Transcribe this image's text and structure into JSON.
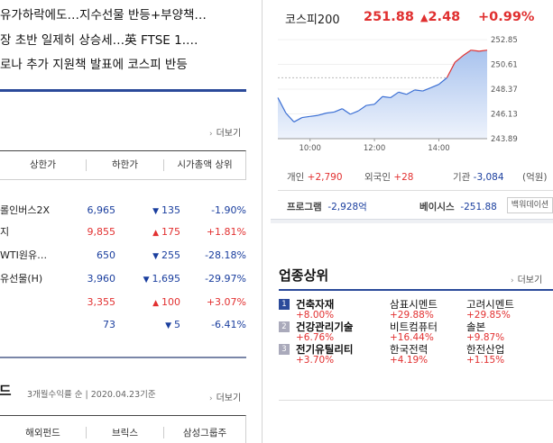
{
  "news": [
    "유가하락에도…지수선물 반등+부양책…",
    "장 초반 일제히 상승세…英 FTSE 1.…",
    "로나 추가 지원책 발표에 코스피 반등"
  ],
  "more_label": "더보기",
  "table": {
    "tabs": [
      "상한가",
      "하한가",
      "시가총액 상위"
    ],
    "rows": [
      {
        "name": "롤인버스2X",
        "price": "6,965",
        "change": "135",
        "dir": "down",
        "rate": "-1.90%"
      },
      {
        "name": "지",
        "price": "9,855",
        "change": "175",
        "dir": "up",
        "rate": "+1.81%"
      },
      {
        "name": " WTI원유…",
        "price": "650",
        "change": "255",
        "dir": "down",
        "rate": "-28.18%"
      },
      {
        "name": "유선물(H)",
        "price": "3,960",
        "change": "1,695",
        "dir": "down",
        "rate": "-29.97%"
      },
      {
        "name": "",
        "price": "3,355",
        "change": "100",
        "dir": "up",
        "rate": "+3.07%"
      },
      {
        "name": "",
        "price": "73",
        "change": "5",
        "dir": "down",
        "rate": "-6.41%"
      }
    ]
  },
  "fund": {
    "title": "펀드",
    "subtitle": "3개월수익률 순 | 2020.04.23기준",
    "tabs": [
      "해외펀드",
      "브릭스",
      "삼성그룹주"
    ]
  },
  "kospi": {
    "name": "코스피200",
    "value": "251.88",
    "change": "2.48",
    "rate": "+0.99%"
  },
  "chart_data": {
    "type": "area",
    "x_ticks": [
      "10:00",
      "12:00",
      "14:00"
    ],
    "y_ticks": [
      "252.85",
      "250.61",
      "248.37",
      "246.13",
      "243.89"
    ],
    "ylim": [
      243.89,
      252.85
    ],
    "reference": 249.4,
    "series": [
      {
        "x": [
          9.0,
          9.25,
          9.5,
          9.75,
          10.0,
          10.25,
          10.5,
          10.75,
          11.0,
          11.25,
          11.5,
          11.75,
          12.0,
          12.25,
          12.5,
          12.75,
          13.0,
          13.25,
          13.5,
          13.75,
          14.0,
          14.25,
          14.5,
          14.75,
          15.0,
          15.25,
          15.5
        ],
        "y": [
          247.6,
          246.2,
          245.4,
          245.8,
          245.9,
          246.0,
          246.2,
          246.3,
          246.6,
          246.1,
          246.4,
          246.9,
          247.0,
          247.7,
          247.6,
          248.1,
          247.9,
          248.3,
          248.2,
          248.5,
          248.8,
          249.4,
          250.8,
          251.4,
          251.9,
          251.8,
          251.9
        ]
      }
    ],
    "colors": {
      "up": "#e03030",
      "down": "#3b6fd4"
    }
  },
  "investors": {
    "individual": {
      "label": "개인",
      "value": "+2,790"
    },
    "foreign": {
      "label": "외국인",
      "value": "+28"
    },
    "institution": {
      "label": "기관",
      "value": "-3,084"
    },
    "unit": "(억원)"
  },
  "program": {
    "label": "프로그램",
    "value": "-2,928억"
  },
  "basis": {
    "label": "베이시스",
    "value": "-251.88",
    "button": "백워데이션"
  },
  "sectors": {
    "title": "업종상위",
    "rows": [
      {
        "rank": "1",
        "items": [
          {
            "name": "건축자재",
            "rate": "+8.00%"
          },
          {
            "name": "삼표시멘트",
            "rate": "+29.88%"
          },
          {
            "name": "고려시멘트",
            "rate": "+29.85%"
          }
        ]
      },
      {
        "rank": "2",
        "items": [
          {
            "name": "건강관리기술",
            "rate": "+6.76%"
          },
          {
            "name": "비트컴퓨터",
            "rate": "+16.44%"
          },
          {
            "name": "솔본",
            "rate": "+9.87%"
          }
        ]
      },
      {
        "rank": "3",
        "items": [
          {
            "name": "전기유틸리티",
            "rate": "+3.70%"
          },
          {
            "name": "한국전력",
            "rate": "+4.19%"
          },
          {
            "name": "한전산업",
            "rate": "+1.15%"
          }
        ]
      }
    ]
  }
}
